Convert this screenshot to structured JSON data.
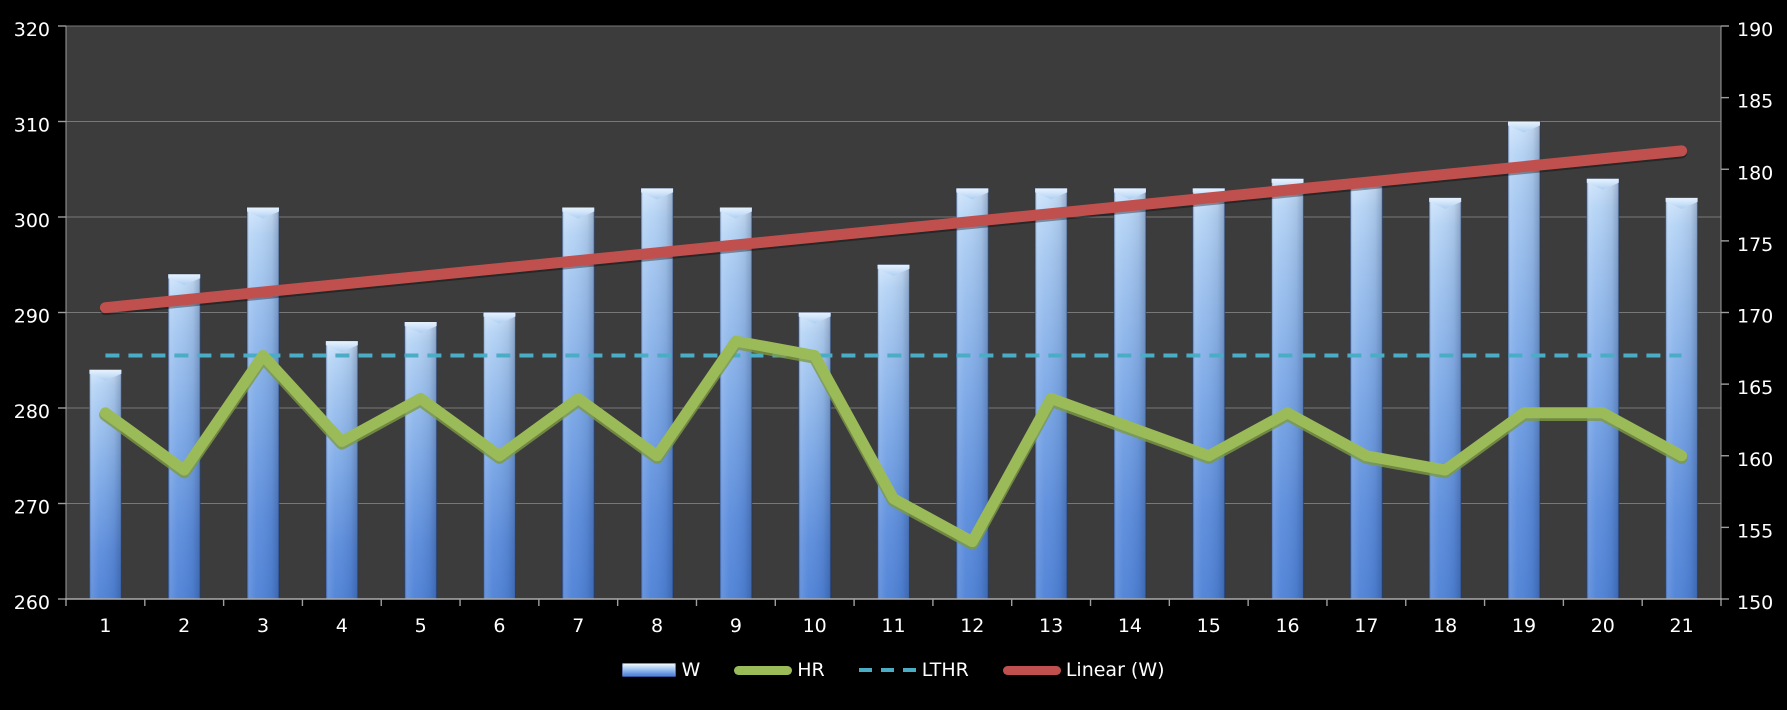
{
  "chart_data": {
    "type": "bar",
    "subtype": "combo-bar-line",
    "title": "",
    "categories": [
      1,
      2,
      3,
      4,
      5,
      6,
      7,
      8,
      9,
      10,
      11,
      12,
      13,
      14,
      15,
      16,
      17,
      18,
      19,
      20,
      21
    ],
    "series": [
      {
        "name": "W",
        "type": "bar",
        "axis": "left",
        "values": [
          284,
          294,
          301,
          287,
          289,
          290,
          301,
          303,
          301,
          290,
          295,
          303,
          303,
          303,
          303,
          304,
          304,
          302,
          310,
          304,
          302
        ]
      },
      {
        "name": "HR",
        "type": "line",
        "axis": "right",
        "values": [
          163,
          159,
          167,
          161,
          164,
          160,
          164,
          160,
          168,
          167,
          157,
          154,
          164,
          162,
          160,
          163,
          160,
          159,
          163,
          163,
          160
        ]
      },
      {
        "name": "LTHR",
        "type": "line",
        "style": "dashed",
        "axis": "right",
        "constant_value": 167
      },
      {
        "name": "Linear (W)",
        "type": "trendline",
        "axis": "left",
        "fit_of": "W"
      }
    ],
    "left_axis": {
      "min": 260,
      "max": 320,
      "step": 10,
      "tick_labels": [
        "320",
        "310",
        "300",
        "290",
        "280",
        "270",
        "260"
      ]
    },
    "right_axis": {
      "min": 150,
      "max": 190,
      "step": 5,
      "tick_labels": [
        "190",
        "185",
        "180",
        "175",
        "170",
        "165",
        "160",
        "155",
        "150"
      ]
    },
    "x_axis": {
      "tick_labels": [
        "1",
        "2",
        "3",
        "4",
        "5",
        "6",
        "7",
        "8",
        "9",
        "10",
        "11",
        "12",
        "13",
        "14",
        "15",
        "16",
        "17",
        "18",
        "19",
        "20",
        "21"
      ]
    },
    "grid": true,
    "legend_position": "bottom"
  },
  "legend": {
    "entries": [
      {
        "label": "W",
        "swatch": "bar"
      },
      {
        "label": "HR",
        "swatch": "line"
      },
      {
        "label": "LTHR",
        "swatch": "dashed-line"
      },
      {
        "label": "Linear (W)",
        "swatch": "line"
      }
    ]
  },
  "colors": {
    "background": "#000000",
    "plot_background": "#3c3c3c",
    "gridline": "#787878",
    "axis_line": "#9e9e9e",
    "text": "#ffffff",
    "bar_light": "#cfe4fb",
    "bar_mid": "#7ba8e7",
    "bar_main": "#4e82d7",
    "bar_cap": "#ddeefc",
    "bar_edge": "rgba(22,48,100,0.45)",
    "hr_line": "#9bbb59",
    "hr_line_shade": "#7d9a43",
    "lthr_line": "#4bacc6",
    "trend_line": "#c0504d"
  }
}
